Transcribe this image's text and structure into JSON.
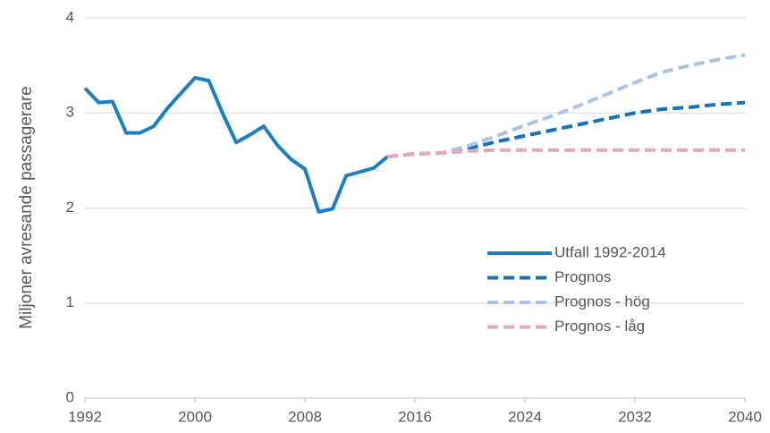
{
  "chart_data": {
    "type": "line",
    "y_label": "Miljoner avresande passagerare",
    "x": [
      1992,
      1993,
      1994,
      1995,
      1996,
      1997,
      1998,
      1999,
      2000,
      2001,
      2002,
      2003,
      2004,
      2005,
      2006,
      2007,
      2008,
      2009,
      2010,
      2011,
      2012,
      2013,
      2014,
      2016,
      2018,
      2020,
      2022,
      2024,
      2026,
      2028,
      2030,
      2032,
      2034,
      2036,
      2038,
      2040
    ],
    "series": [
      {
        "name": "Utfall 1992-2014",
        "color": "#1b7fc4",
        "dash": "solid",
        "values": [
          3.26,
          3.11,
          3.12,
          2.79,
          2.79,
          2.86,
          3.05,
          3.21,
          3.37,
          3.34,
          3.0,
          2.69,
          2.77,
          2.86,
          2.66,
          2.51,
          2.41,
          1.96,
          1.99,
          2.34,
          2.38,
          2.42,
          2.54,
          null,
          null,
          null,
          null,
          null,
          null,
          null,
          null,
          null,
          null,
          null,
          null,
          null
        ]
      },
      {
        "name": "Prognos",
        "color": "#1273b9",
        "dash": "dashed",
        "values": [
          null,
          null,
          null,
          null,
          null,
          null,
          null,
          null,
          null,
          null,
          null,
          null,
          null,
          null,
          null,
          null,
          null,
          null,
          null,
          null,
          null,
          null,
          2.54,
          2.57,
          2.58,
          2.63,
          2.7,
          2.76,
          2.82,
          2.88,
          2.94,
          3.0,
          3.04,
          3.06,
          3.09,
          3.11
        ]
      },
      {
        "name": "Prognos - hög",
        "color": "#a9c4e6",
        "dash": "dashed",
        "values": [
          null,
          null,
          null,
          null,
          null,
          null,
          null,
          null,
          null,
          null,
          null,
          null,
          null,
          null,
          null,
          null,
          null,
          null,
          null,
          null,
          null,
          null,
          2.54,
          2.57,
          2.58,
          2.66,
          2.76,
          2.87,
          2.97,
          3.08,
          3.2,
          3.32,
          3.43,
          3.5,
          3.56,
          3.61
        ]
      },
      {
        "name": "Prognos - låg",
        "color": "#e3a8bf",
        "dash": "dashed",
        "values": [
          null,
          null,
          null,
          null,
          null,
          null,
          null,
          null,
          null,
          null,
          null,
          null,
          null,
          null,
          null,
          null,
          null,
          null,
          null,
          null,
          null,
          null,
          2.54,
          2.57,
          2.58,
          2.6,
          2.61,
          2.61,
          2.61,
          2.61,
          2.61,
          2.61,
          2.61,
          2.61,
          2.61,
          2.61
        ]
      }
    ],
    "xlim": [
      1992,
      2040
    ],
    "xticks": [
      1992,
      2000,
      2008,
      2016,
      2024,
      2032,
      2040
    ],
    "ylim": [
      0,
      4
    ],
    "yticks": [
      0,
      1,
      2,
      3,
      4
    ],
    "grid": true,
    "legend": "lower right"
  }
}
